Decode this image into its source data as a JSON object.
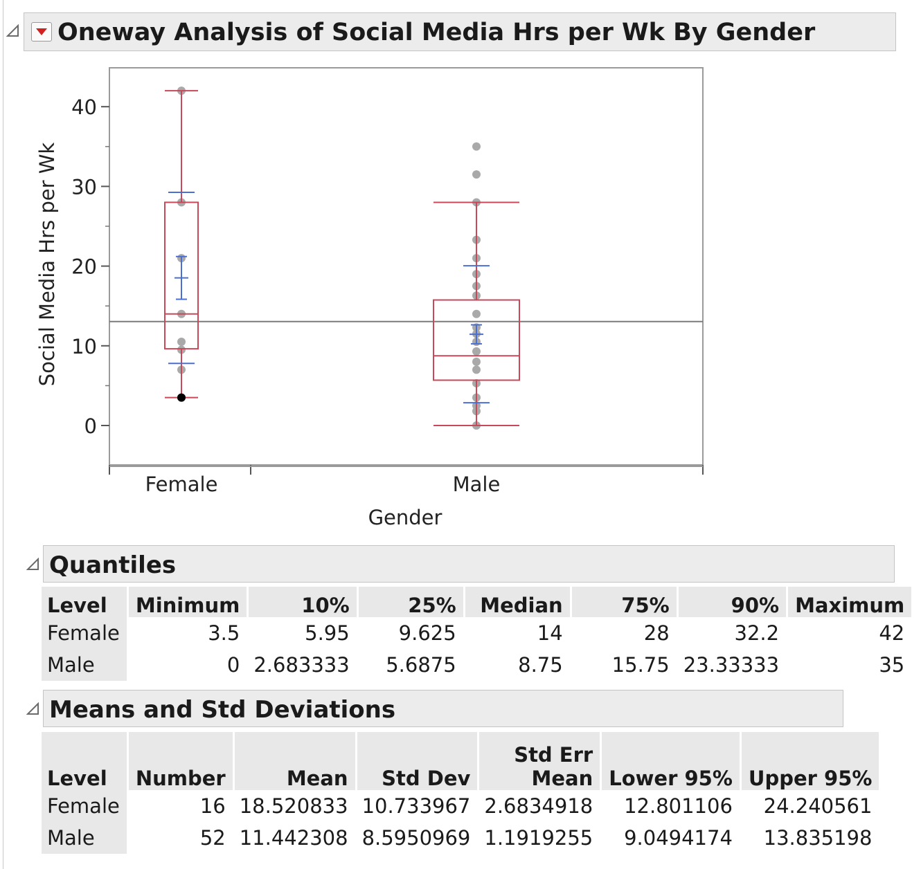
{
  "report": {
    "title": "Oneway Analysis of Social Media Hrs per Wk By Gender"
  },
  "chart_data": {
    "type": "box",
    "xlabel": "Gender",
    "ylabel": "Social Media Hrs per Wk",
    "categories": [
      "Female",
      "Male"
    ],
    "ylim": [
      -5,
      44
    ],
    "yticks": [
      0,
      10,
      20,
      30,
      40
    ],
    "grand_mean": 13.04,
    "boxes": [
      {
        "category": "Female",
        "min": 3.5,
        "q1": 9.625,
        "median": 14,
        "q3": 28,
        "max": 42,
        "mean": 18.520833,
        "ci_lower": 15.84,
        "ci_upper": 21.2,
        "sd_lower": 7.79,
        "sd_upper": 29.25,
        "points": [
          42,
          28,
          21,
          14,
          10.5,
          9.5,
          7,
          3.5
        ]
      },
      {
        "category": "Male",
        "min": 0,
        "q1": 5.6875,
        "median": 8.75,
        "q3": 15.75,
        "max": 28,
        "mean": 11.442308,
        "ci_lower": 10.25,
        "ci_upper": 12.63,
        "sd_lower": 2.85,
        "sd_upper": 20.04,
        "points": [
          35,
          31.5,
          28,
          23.3,
          21,
          19,
          17.5,
          16.3,
          14,
          12.3,
          11.5,
          10.5,
          9.3,
          8,
          7,
          5.3,
          3.5,
          2.5,
          1.8,
          0
        ]
      }
    ],
    "colors": {
      "box": "#c8485a",
      "mean_ci": "#4a6fd0",
      "points": "#a9a9a9",
      "grand_mean_line": "#7a7a7a",
      "highlight_point": "#000000"
    }
  },
  "quantiles": {
    "title": "Quantiles",
    "columns": [
      "Level",
      "Minimum",
      "10%",
      "25%",
      "Median",
      "75%",
      "90%",
      "Maximum"
    ],
    "rows": [
      [
        "Female",
        "3.5",
        "5.95",
        "9.625",
        "14",
        "28",
        "32.2",
        "42"
      ],
      [
        "Male",
        "0",
        "2.683333",
        "5.6875",
        "8.75",
        "15.75",
        "23.33333",
        "35"
      ]
    ]
  },
  "means": {
    "title": "Means and Std Deviations",
    "columns": [
      "Level",
      "Number",
      "Mean",
      "Std Dev",
      "Std Err\nMean",
      "Lower 95%",
      "Upper 95%"
    ],
    "rows": [
      [
        "Female",
        "16",
        "18.520833",
        "10.733967",
        "2.6834918",
        "12.801106",
        "24.240561"
      ],
      [
        "Male",
        "52",
        "11.442308",
        "8.5950969",
        "1.1919255",
        "9.0494174",
        "13.835198"
      ]
    ]
  },
  "icons": {
    "disclosure": "collapse-triangle-icon",
    "menu": "red-triangle-menu-icon"
  }
}
